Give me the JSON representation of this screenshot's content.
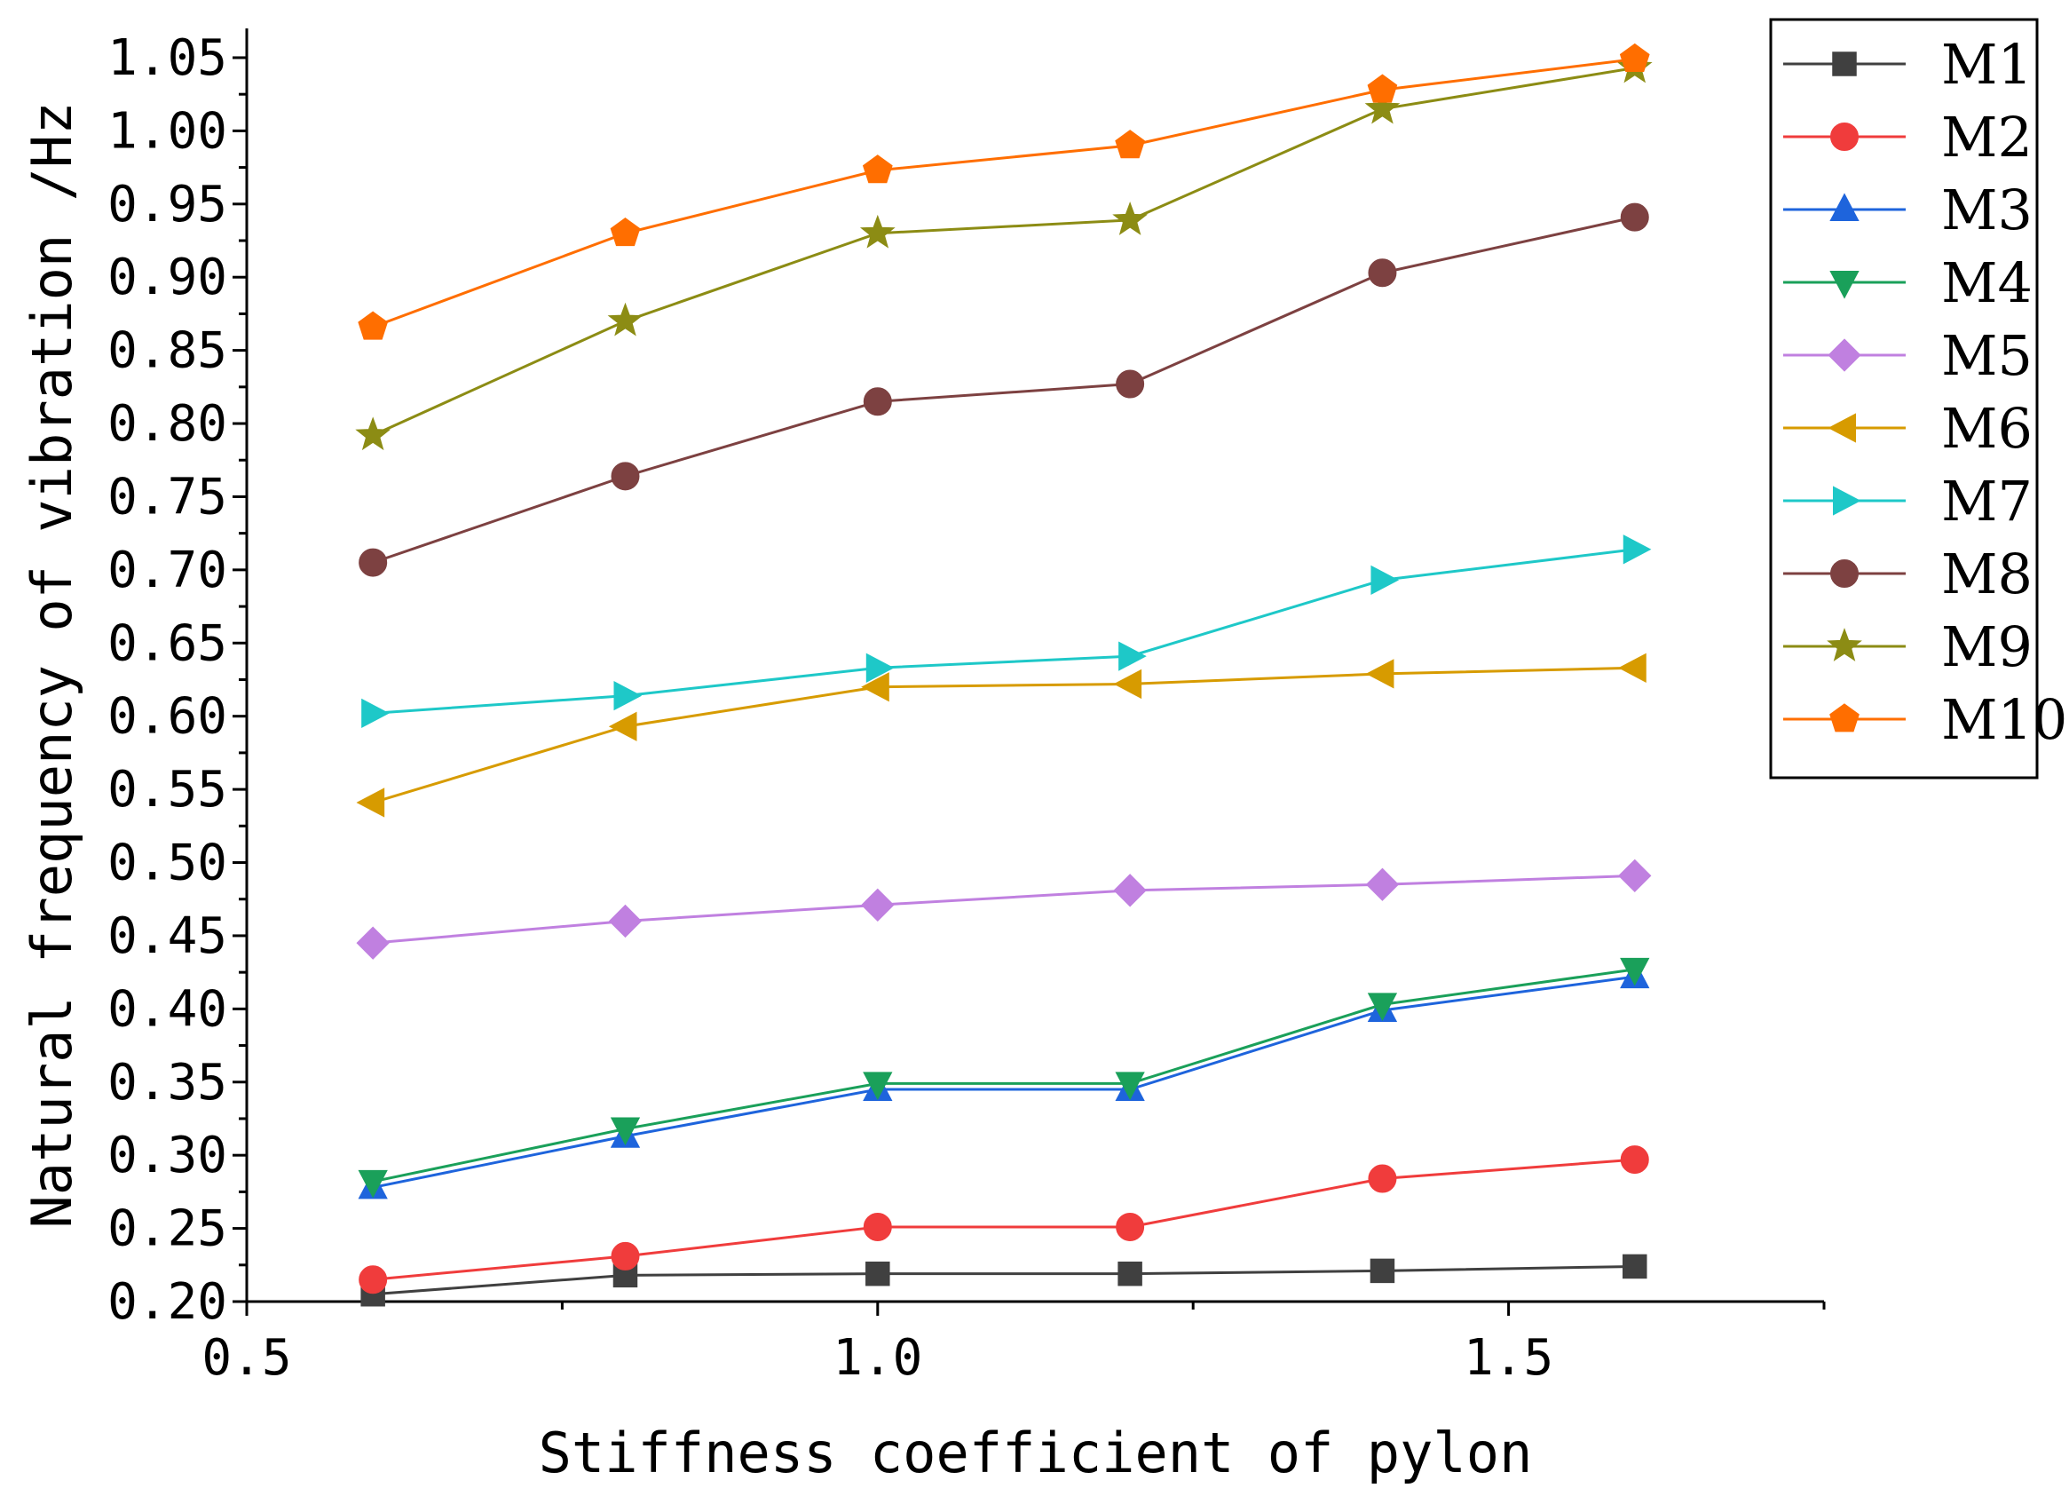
{
  "chart_data": {
    "type": "line",
    "xlabel": "Stiffness coefficient of pylon",
    "ylabel": "Natural frequency of vibration /Hz",
    "xlim": [
      0.5,
      1.75
    ],
    "ylim": [
      0.2,
      1.07
    ],
    "x_ticks": [
      0.5,
      1.0,
      1.5
    ],
    "x_tick_labels": [
      "0.5",
      "1.0",
      "1.5"
    ],
    "y_ticks": [
      0.2,
      0.25,
      0.3,
      0.35,
      0.4,
      0.45,
      0.5,
      0.55,
      0.6,
      0.65,
      0.7,
      0.75,
      0.8,
      0.85,
      0.9,
      0.95,
      1.0,
      1.05
    ],
    "y_tick_labels": [
      "0.20",
      "0.25",
      "0.30",
      "0.35",
      "0.40",
      "0.45",
      "0.50",
      "0.55",
      "0.60",
      "0.65",
      "0.70",
      "0.75",
      "0.80",
      "0.85",
      "0.90",
      "0.95",
      "1.00",
      "1.05"
    ],
    "grid": false,
    "legend_position": "top-right, outside plot",
    "x": [
      0.6,
      0.8,
      1.0,
      1.2,
      1.4,
      1.6
    ],
    "series": [
      {
        "name": "M1",
        "color": "#404040",
        "marker": "square",
        "values": [
          0.205,
          0.218,
          0.219,
          0.219,
          0.221,
          0.224
        ]
      },
      {
        "name": "M2",
        "color": "#f03c3c",
        "marker": "circle",
        "values": [
          0.215,
          0.231,
          0.251,
          0.251,
          0.284,
          0.297
        ]
      },
      {
        "name": "M3",
        "color": "#1e64dc",
        "marker": "triangle-up",
        "values": [
          0.278,
          0.313,
          0.345,
          0.345,
          0.399,
          0.422
        ]
      },
      {
        "name": "M4",
        "color": "#1aa05a",
        "marker": "triangle-down",
        "values": [
          0.282,
          0.318,
          0.349,
          0.349,
          0.403,
          0.427
        ]
      },
      {
        "name": "M5",
        "color": "#c080e0",
        "marker": "diamond",
        "values": [
          0.445,
          0.46,
          0.471,
          0.481,
          0.485,
          0.491
        ]
      },
      {
        "name": "M6",
        "color": "#d79b00",
        "marker": "triangle-left",
        "values": [
          0.541,
          0.593,
          0.62,
          0.622,
          0.629,
          0.633
        ]
      },
      {
        "name": "M7",
        "color": "#1ec8c8",
        "marker": "triangle-right",
        "values": [
          0.602,
          0.614,
          0.633,
          0.641,
          0.693,
          0.714
        ]
      },
      {
        "name": "M8",
        "color": "#7d4141",
        "marker": "circle",
        "values": [
          0.705,
          0.764,
          0.815,
          0.827,
          0.903,
          0.941
        ]
      },
      {
        "name": "M9",
        "color": "#8c8c14",
        "marker": "star",
        "values": [
          0.792,
          0.87,
          0.93,
          0.939,
          1.015,
          1.043
        ]
      },
      {
        "name": "M10",
        "color": "#ff6e00",
        "marker": "pentagon",
        "values": [
          0.866,
          0.93,
          0.973,
          0.99,
          1.028,
          1.049
        ]
      }
    ]
  }
}
